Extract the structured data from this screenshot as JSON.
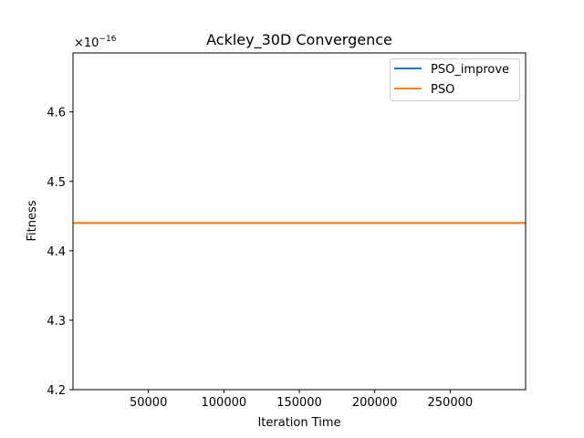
{
  "chart_data": {
    "type": "line",
    "title": "Ackley_30D Convergence",
    "xlabel": "Iteration Time",
    "ylabel": "Fitness",
    "y_offset_base": "×10",
    "y_offset_exponent": "−16",
    "xlim": [
      1,
      300000
    ],
    "ylim": [
      4.2,
      4.685
    ],
    "x_ticks": [
      50000,
      100000,
      150000,
      200000,
      250000
    ],
    "x_tick_labels": [
      "50000",
      "100000",
      "150000",
      "200000",
      "250000"
    ],
    "y_ticks": [
      4.2,
      4.3,
      4.4,
      4.5,
      4.6
    ],
    "y_tick_labels": [
      "4.2",
      "4.3",
      "4.4",
      "4.5",
      "4.6"
    ],
    "grid": false,
    "legend_position": "top-right",
    "series": [
      {
        "name": "PSO_improve",
        "color": "#1f77b4",
        "x": [
          1,
          300000
        ],
        "y": [
          4.44,
          4.44
        ]
      },
      {
        "name": "PSO",
        "color": "#ff7f0e",
        "x": [
          1,
          300000
        ],
        "y": [
          4.44,
          4.44
        ]
      }
    ]
  }
}
